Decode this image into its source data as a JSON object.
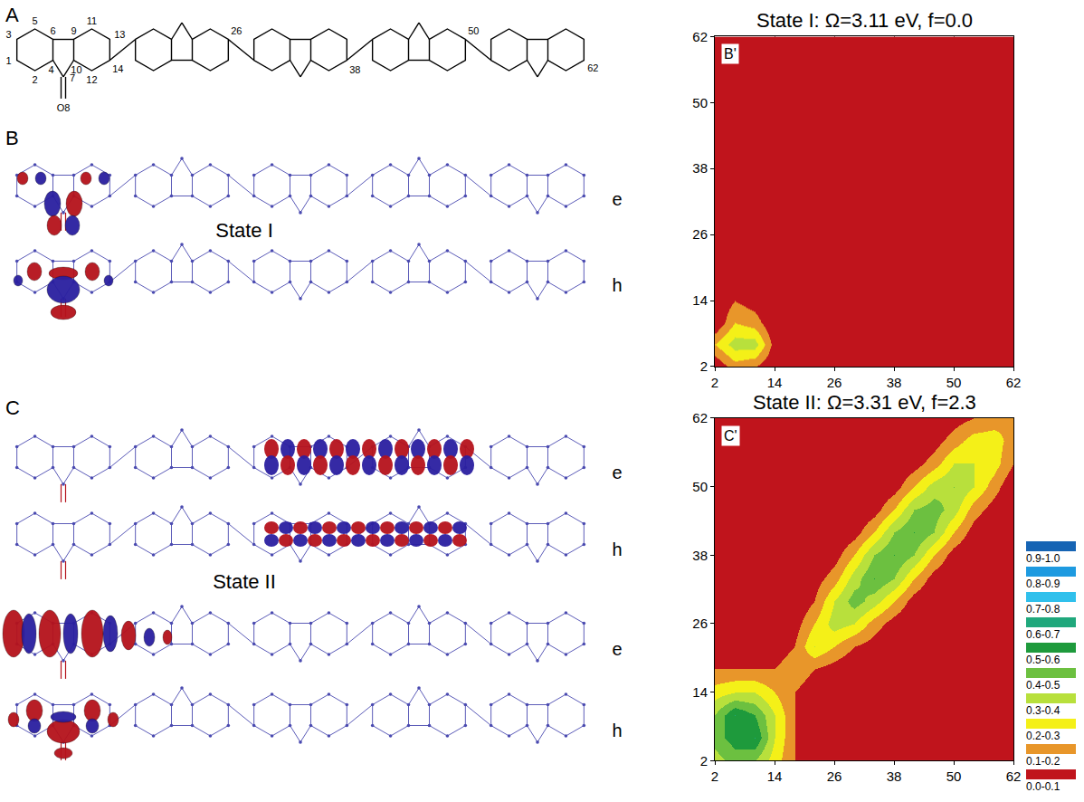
{
  "figure": {
    "panel_A": {
      "letter": "A",
      "atom_labels": [
        "1",
        "2",
        "3",
        "5",
        "6",
        "4",
        "9",
        "10",
        "11",
        "13",
        "12",
        "14",
        "7",
        "O8",
        "26",
        "38",
        "50",
        "62"
      ]
    },
    "panel_B": {
      "letter": "B",
      "state": "State I",
      "rows": [
        "e",
        "h"
      ]
    },
    "panel_C": {
      "letter": "C",
      "state": "State II",
      "rows": [
        "e",
        "h",
        "e",
        "h"
      ]
    },
    "color_key": {
      "bins": [
        {
          "label": "0.9-1.0",
          "lo": 0.9,
          "hi": 1.0,
          "color": "#1664b4"
        },
        {
          "label": "0.8-0.9",
          "lo": 0.8,
          "hi": 0.9,
          "color": "#1e9ae0"
        },
        {
          "label": "0.7-0.8",
          "lo": 0.7,
          "hi": 0.8,
          "color": "#30c0ec"
        },
        {
          "label": "0.6-0.7",
          "lo": 0.6,
          "hi": 0.7,
          "color": "#20a87c"
        },
        {
          "label": "0.5-0.6",
          "lo": 0.5,
          "hi": 0.6,
          "color": "#1e9a3c"
        },
        {
          "label": "0.4-0.5",
          "lo": 0.4,
          "hi": 0.5,
          "color": "#6cc040"
        },
        {
          "label": "0.3-0.4",
          "lo": 0.3,
          "hi": 0.4,
          "color": "#b8e03c"
        },
        {
          "label": "0.2-0.3",
          "lo": 0.2,
          "hi": 0.3,
          "color": "#f4f018"
        },
        {
          "label": "0.1-0.2",
          "lo": 0.1,
          "hi": 0.2,
          "color": "#e8962a"
        },
        {
          "label": "0.0-0.1",
          "lo": 0.0,
          "hi": 0.1,
          "color": "#c0141c"
        }
      ]
    }
  },
  "chart_data": [
    {
      "type": "heatmap",
      "label": "B'",
      "title": "State I: Ω=3.11 eV, f=0.0",
      "x": [
        2,
        6,
        10,
        14,
        18,
        22,
        26,
        30,
        34,
        38,
        42,
        46,
        50,
        54,
        58,
        62
      ],
      "y": [
        2,
        6,
        10,
        14,
        18,
        22,
        26,
        30,
        34,
        38,
        42,
        46,
        50,
        54,
        58,
        62
      ],
      "z": [
        [
          0,
          0.15,
          0.1,
          0,
          0,
          0,
          0,
          0,
          0,
          0,
          0,
          0,
          0,
          0,
          0,
          0
        ],
        [
          0.2,
          0.35,
          0.35,
          0.05,
          0,
          0,
          0,
          0,
          0,
          0,
          0,
          0,
          0,
          0,
          0,
          0
        ],
        [
          0,
          0.2,
          0.15,
          0,
          0,
          0,
          0,
          0,
          0,
          0,
          0,
          0,
          0,
          0,
          0,
          0
        ],
        [
          0,
          0.1,
          0.05,
          0,
          0,
          0,
          0,
          0,
          0,
          0,
          0,
          0,
          0,
          0,
          0,
          0
        ],
        [
          0,
          0,
          0,
          0,
          0,
          0,
          0,
          0,
          0,
          0,
          0,
          0,
          0,
          0,
          0,
          0
        ],
        [
          0,
          0,
          0,
          0,
          0,
          0,
          0,
          0,
          0,
          0,
          0,
          0,
          0,
          0,
          0,
          0
        ],
        [
          0,
          0,
          0,
          0,
          0,
          0,
          0,
          0,
          0,
          0,
          0,
          0,
          0,
          0,
          0,
          0
        ],
        [
          0,
          0,
          0,
          0,
          0,
          0,
          0,
          0,
          0,
          0,
          0,
          0,
          0,
          0,
          0,
          0
        ],
        [
          0,
          0,
          0,
          0,
          0,
          0,
          0,
          0,
          0,
          0,
          0,
          0,
          0,
          0,
          0,
          0
        ],
        [
          0,
          0,
          0,
          0,
          0,
          0,
          0,
          0,
          0,
          0,
          0,
          0,
          0,
          0,
          0,
          0
        ],
        [
          0,
          0,
          0,
          0,
          0,
          0,
          0,
          0,
          0,
          0,
          0,
          0,
          0,
          0,
          0,
          0
        ],
        [
          0,
          0,
          0,
          0,
          0,
          0,
          0,
          0,
          0,
          0,
          0,
          0,
          0,
          0,
          0,
          0
        ],
        [
          0,
          0,
          0,
          0,
          0,
          0,
          0,
          0,
          0,
          0,
          0,
          0,
          0,
          0,
          0,
          0
        ],
        [
          0,
          0,
          0,
          0,
          0,
          0,
          0,
          0,
          0,
          0,
          0,
          0,
          0,
          0,
          0,
          0
        ],
        [
          0,
          0,
          0,
          0,
          0,
          0,
          0,
          0,
          0,
          0,
          0,
          0,
          0,
          0,
          0,
          0
        ],
        [
          0,
          0,
          0,
          0,
          0,
          0,
          0,
          0,
          0,
          0,
          0,
          0,
          0,
          0,
          0,
          0
        ]
      ],
      "xlim": [
        2,
        62
      ],
      "ylim": [
        2,
        62
      ],
      "xticks": [
        2,
        14,
        26,
        38,
        50,
        62
      ],
      "yticks": [
        2,
        14,
        26,
        38,
        50,
        62
      ],
      "grid": true
    },
    {
      "type": "heatmap",
      "label": "C'",
      "title": "State II: Ω=3.31 eV, f=2.3",
      "x": [
        2,
        6,
        10,
        14,
        18,
        22,
        26,
        30,
        34,
        38,
        42,
        46,
        50,
        54,
        58,
        62
      ],
      "y": [
        2,
        6,
        10,
        14,
        18,
        22,
        26,
        30,
        34,
        38,
        42,
        46,
        50,
        54,
        58,
        62
      ],
      "z": [
        [
          0.35,
          0.45,
          0.4,
          0.25,
          0.1,
          0,
          0,
          0,
          0,
          0,
          0,
          0,
          0,
          0,
          0,
          0
        ],
        [
          0.45,
          0.55,
          0.6,
          0.3,
          0.1,
          0,
          0,
          0,
          0,
          0,
          0,
          0,
          0,
          0,
          0,
          0
        ],
        [
          0.4,
          0.6,
          0.5,
          0.3,
          0.1,
          0,
          0,
          0,
          0,
          0,
          0,
          0,
          0,
          0,
          0,
          0
        ],
        [
          0.25,
          0.3,
          0.3,
          0.2,
          0.1,
          0.05,
          0,
          0,
          0,
          0,
          0,
          0,
          0,
          0,
          0,
          0
        ],
        [
          0.1,
          0.1,
          0.1,
          0.1,
          0.15,
          0.1,
          0.05,
          0,
          0,
          0,
          0,
          0,
          0,
          0,
          0,
          0
        ],
        [
          0,
          0,
          0,
          0.05,
          0.1,
          0.3,
          0.2,
          0.1,
          0.05,
          0,
          0,
          0,
          0,
          0,
          0,
          0
        ],
        [
          0,
          0,
          0,
          0,
          0.05,
          0.2,
          0.35,
          0.3,
          0.15,
          0.05,
          0,
          0,
          0,
          0,
          0,
          0
        ],
        [
          0,
          0,
          0,
          0,
          0,
          0.1,
          0.3,
          0.45,
          0.35,
          0.2,
          0.05,
          0,
          0,
          0,
          0,
          0
        ],
        [
          0,
          0,
          0,
          0,
          0,
          0.05,
          0.15,
          0.35,
          0.5,
          0.4,
          0.2,
          0.05,
          0,
          0,
          0,
          0
        ],
        [
          0,
          0,
          0,
          0,
          0,
          0,
          0.05,
          0.2,
          0.4,
          0.5,
          0.4,
          0.2,
          0.05,
          0,
          0,
          0
        ],
        [
          0,
          0,
          0,
          0,
          0,
          0,
          0,
          0.05,
          0.2,
          0.4,
          0.5,
          0.4,
          0.2,
          0.05,
          0,
          0
        ],
        [
          0,
          0,
          0,
          0,
          0,
          0,
          0,
          0,
          0.05,
          0.2,
          0.4,
          0.45,
          0.35,
          0.15,
          0.05,
          0
        ],
        [
          0,
          0,
          0,
          0,
          0,
          0,
          0,
          0,
          0,
          0.05,
          0.2,
          0.35,
          0.4,
          0.3,
          0.15,
          0
        ],
        [
          0,
          0,
          0,
          0,
          0,
          0,
          0,
          0,
          0,
          0,
          0.05,
          0.15,
          0.3,
          0.3,
          0.25,
          0.1
        ],
        [
          0,
          0,
          0,
          0,
          0,
          0,
          0,
          0,
          0,
          0,
          0,
          0.05,
          0.15,
          0.25,
          0.25,
          0.15
        ],
        [
          0,
          0,
          0,
          0,
          0,
          0,
          0,
          0,
          0,
          0,
          0,
          0,
          0.05,
          0.1,
          0.15,
          0.2
        ]
      ],
      "xlim": [
        2,
        62
      ],
      "ylim": [
        2,
        62
      ],
      "xticks": [
        2,
        14,
        26,
        38,
        50,
        62
      ],
      "yticks": [
        2,
        14,
        26,
        38,
        50,
        62
      ],
      "grid": true
    }
  ]
}
